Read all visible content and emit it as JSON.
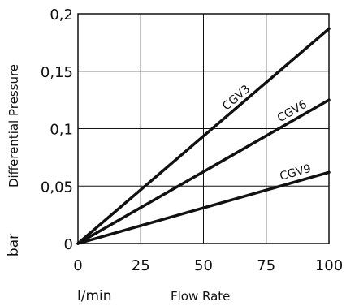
{
  "chart_data": {
    "type": "line",
    "title": "",
    "xlabel": "Flow Rate",
    "ylabel": "Differential Pressure",
    "x_unit": "l/min",
    "y_unit": "bar",
    "xlim": [
      0,
      100
    ],
    "ylim": [
      0,
      0.2
    ],
    "x_ticks": [
      0,
      25,
      50,
      75,
      100
    ],
    "x_tick_labels": [
      "0",
      "25",
      "50",
      "75",
      "100"
    ],
    "y_ticks": [
      0,
      0.05,
      0.1,
      0.15,
      0.2
    ],
    "y_tick_labels": [
      "0",
      "0,05",
      "0,1",
      "0,15",
      "0,2"
    ],
    "grid": true,
    "legend": "none",
    "series": [
      {
        "name": "CGV3",
        "x": [
          0,
          100
        ],
        "y": [
          0,
          0.187
        ]
      },
      {
        "name": "CGV6",
        "x": [
          0,
          100
        ],
        "y": [
          0,
          0.125
        ]
      },
      {
        "name": "CGV9",
        "x": [
          0,
          100
        ],
        "y": [
          0,
          0.062
        ]
      }
    ]
  }
}
